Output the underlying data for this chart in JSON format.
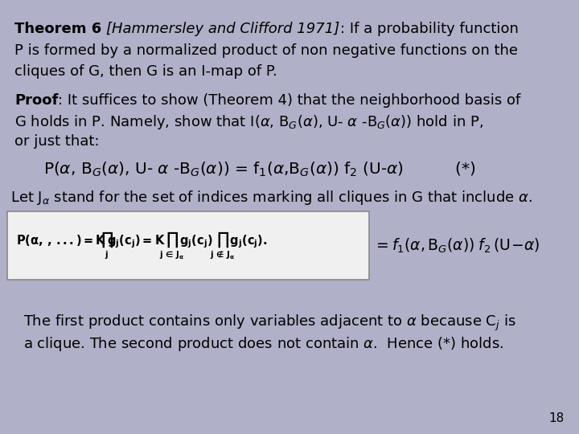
{
  "background_color": "#b0b0c8",
  "slide_number": "18",
  "formula_box_color": "#f0f0f0",
  "formula_box_border": "#888888",
  "text_color": "#000000",
  "fs_main": 13.0,
  "fs_eq": 14.5,
  "fs_small": 12.0,
  "theorem_line1_bold": "Theorem 6 ",
  "theorem_line1_italic": "[Hammersley and Clifford 1971]",
  "theorem_line1_normal": ": If a probability function",
  "theorem_line2": "P is formed by a normalized product of non negative functions on the",
  "theorem_line3": "cliques of G, then G is an I-map of P.",
  "proof_bold": "Proof",
  "proof_normal": ": It suffices to show (Theorem 4) that the neighborhood basis of",
  "proof_line2": "G holds in P. Namely, show that I(α, B_G(α), U- α -B_G(α)) hold in P,",
  "proof_line3": "or just that:",
  "equation": "P(α, B_G(α), U- α -B_G(α)) = f_1(α,B_G(α)) f_2 (U-α)          (*)",
  "let_line": "Let J_α stand for the set of indices marking all cliques in G that include α.",
  "bottom_line1": "The first product contains only variables adjacent to α because C_j is",
  "bottom_line2": "a clique. The second product does not contain α.  Hence (*) holds."
}
